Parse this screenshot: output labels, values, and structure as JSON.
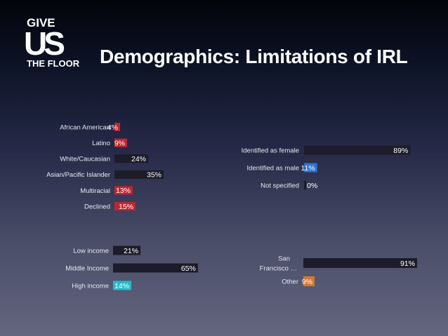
{
  "logo": {
    "line1": "GIVE",
    "line2": "US",
    "line3": "THE FLOOR"
  },
  "title": "Demographics: Limitations of IRL",
  "colors": {
    "track": "#1c1c2a",
    "red": "#c0262f",
    "blue": "#2a74d6",
    "teal": "#24bcc8",
    "orange": "#d9782a"
  },
  "chart_data": [
    {
      "type": "bar",
      "orientation": "horizontal",
      "categories": [
        "African American",
        "Latino",
        "White/Caucasian",
        "Asian/Pacific Islander",
        "Multiracial",
        "Declined"
      ],
      "values": [
        4,
        9,
        24,
        35,
        13,
        15
      ],
      "labels": [
        "4%",
        "9%",
        "24%",
        "35%",
        "13%",
        "15%"
      ],
      "fill_colors": [
        "#c0262f",
        "#c0262f",
        "#1c1c2a",
        "#1c1c2a",
        "#c0262f",
        "#c0262f"
      ],
      "xlim": [
        0,
        100
      ]
    },
    {
      "type": "bar",
      "orientation": "horizontal",
      "categories": [
        "Identified as female",
        "Identified as male",
        "Not specified"
      ],
      "values": [
        89,
        11,
        0
      ],
      "labels": [
        "89%",
        "11%",
        "0%"
      ],
      "fill_colors": [
        "#1c1c2a",
        "#2a74d6",
        "#1c1c2a"
      ],
      "xlim": [
        0,
        100
      ]
    },
    {
      "type": "bar",
      "orientation": "horizontal",
      "categories": [
        "Low income",
        "Middle Income",
        "High income"
      ],
      "values": [
        21,
        65,
        14
      ],
      "labels": [
        "21%",
        "65%",
        "14%"
      ],
      "fill_colors": [
        "#1c1c2a",
        "#1c1c2a",
        "#24bcc8"
      ],
      "xlim": [
        0,
        100
      ]
    },
    {
      "type": "bar",
      "orientation": "horizontal",
      "categories": [
        "San\nFrancisco …",
        "Other"
      ],
      "values": [
        91,
        9
      ],
      "labels": [
        "91%",
        "9%"
      ],
      "fill_colors": [
        "#1c1c2a",
        "#d9782a"
      ],
      "xlim": [
        0,
        100
      ]
    }
  ]
}
